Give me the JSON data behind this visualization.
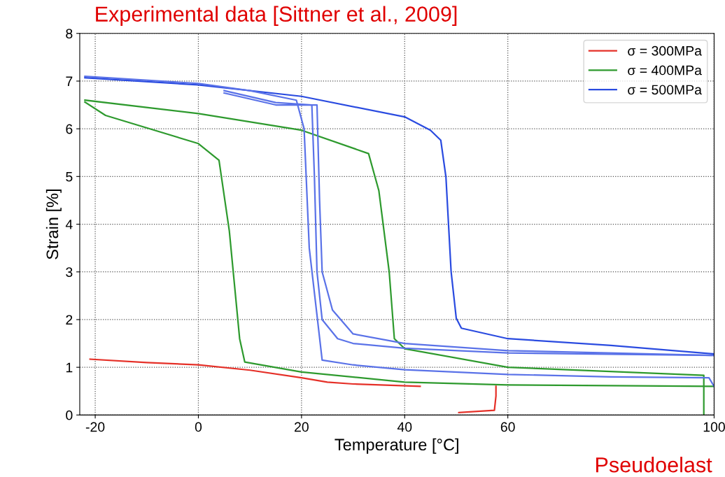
{
  "chart_data": {
    "type": "line",
    "title": "Experimental data [Sittner et al., 2009]",
    "xlabel": "Temperature [°C]",
    "ylabel": "Strain [%]",
    "xlim": [
      -23,
      100
    ],
    "ylim": [
      0,
      8
    ],
    "xticks": [
      -20,
      0,
      20,
      40,
      60,
      100
    ],
    "yticks": [
      0,
      1,
      2,
      3,
      4,
      5,
      6,
      7,
      8
    ],
    "grid": true,
    "legend": "top right",
    "line_style": "solid",
    "marker": "none",
    "annotations": [
      "Pseudoelast"
    ],
    "series": [
      {
        "name": "σ = 300MPa",
        "color": "#e53028",
        "x": [
          -21,
          -10,
          0,
          10,
          20,
          25,
          30,
          43
        ],
        "values": [
          1.17,
          1.1,
          1.05,
          0.94,
          0.78,
          0.69,
          0.65,
          0.6
        ]
      },
      {
        "color": "#e53028",
        "x": [
          50.5,
          57.4,
          57.7,
          57.7
        ],
        "values": [
          0.05,
          0.1,
          0.4,
          0.6
        ]
      },
      {
        "name": "σ = 400MPa",
        "color": "#2e9a2e",
        "x": [
          -22,
          -18,
          0,
          4,
          6,
          8,
          9,
          20,
          40,
          60,
          100
        ],
        "values": [
          6.56,
          6.28,
          5.69,
          5.34,
          3.86,
          1.6,
          1.11,
          0.9,
          0.69,
          0.63,
          0.6
        ]
      },
      {
        "color": "#2e9a2e",
        "x": [
          -22,
          0,
          20,
          33,
          35,
          37,
          38,
          40,
          60,
          98,
          98
        ],
        "values": [
          6.6,
          6.32,
          5.97,
          5.48,
          4.7,
          3.0,
          1.6,
          1.39,
          1.0,
          0.83,
          0
        ]
      },
      {
        "name": "σ = 500MPa",
        "color": "#2a4be0",
        "x": [
          -22,
          0,
          20,
          40,
          45,
          47,
          48,
          49,
          50,
          51,
          60,
          80,
          100
        ],
        "values": [
          7.07,
          6.92,
          6.68,
          6.25,
          5.97,
          5.76,
          4.99,
          3.01,
          2.03,
          1.82,
          1.6,
          1.46,
          1.28
        ]
      },
      {
        "color": "#5a72e8",
        "x": [
          -22,
          0,
          10,
          19,
          20.5,
          21.5,
          24,
          30,
          40,
          60,
          80,
          99,
          100
        ],
        "values": [
          7.1,
          6.95,
          6.8,
          6.6,
          6.0,
          3.5,
          1.15,
          1.05,
          0.95,
          0.85,
          0.8,
          0.78,
          0.6
        ]
      },
      {
        "color": "#5a72e8",
        "x": [
          5,
          15,
          22,
          22.5,
          23,
          24,
          27,
          30,
          40,
          60,
          100
        ],
        "values": [
          6.8,
          6.55,
          6.5,
          5.0,
          3.0,
          2.0,
          1.6,
          1.5,
          1.4,
          1.3,
          1.25
        ]
      },
      {
        "color": "#5a72e8",
        "x": [
          5,
          15,
          23,
          23.5,
          24,
          26,
          30,
          40,
          60,
          100
        ],
        "values": [
          6.75,
          6.5,
          6.5,
          4.5,
          3.0,
          2.2,
          1.7,
          1.5,
          1.35,
          1.25
        ]
      }
    ]
  }
}
